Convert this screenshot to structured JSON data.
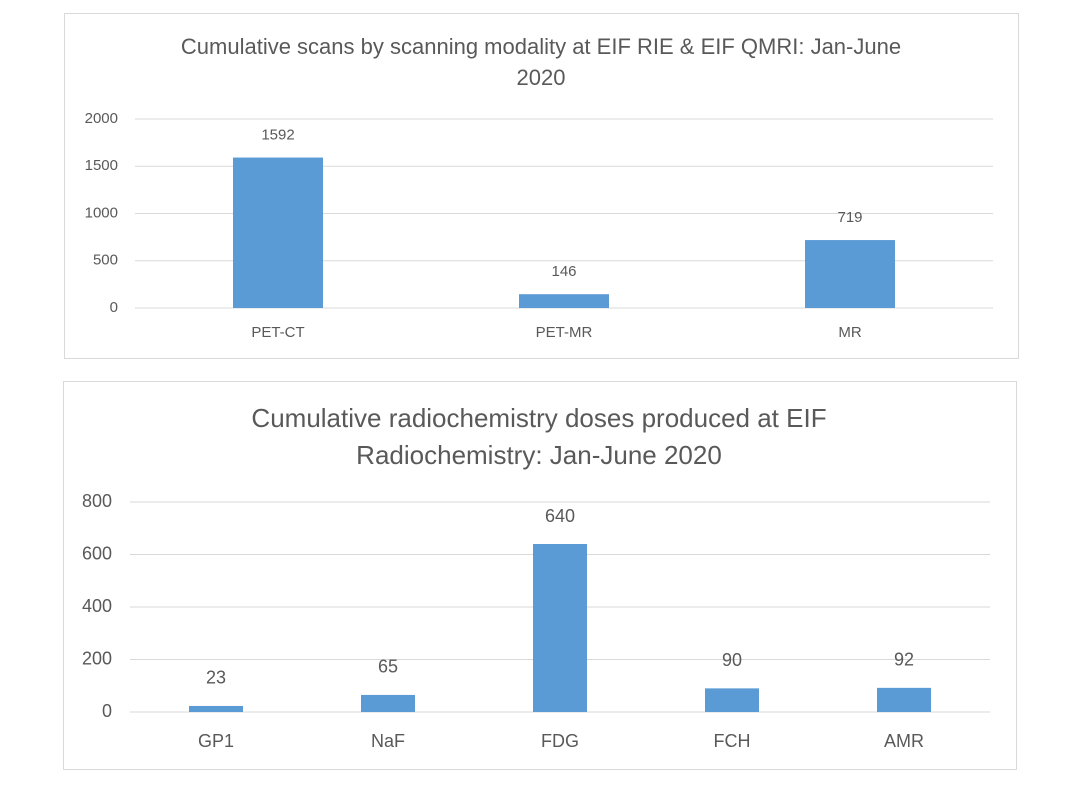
{
  "chart_data": [
    {
      "type": "bar",
      "title": "Cumulative scans by scanning modality at EIF RIE & EIF QMRI: Jan-June 2020",
      "categories": [
        "PET-CT",
        "PET-MR",
        "MR"
      ],
      "values": [
        1592,
        146,
        719
      ],
      "color": "#5b9bd5",
      "ylim": [
        0,
        2000
      ],
      "yticks": [
        0,
        500,
        1000,
        1500,
        2000
      ],
      "grid": true
    },
    {
      "type": "bar",
      "title": "Cumulative radiochemistry doses produced at EIF Radiochemistry: Jan-June 2020",
      "categories": [
        "GP1",
        "NaF",
        "FDG",
        "FCH",
        "AMR"
      ],
      "values": [
        23,
        65,
        640,
        90,
        92
      ],
      "color": "#5b9bd5",
      "ylim": [
        0,
        800
      ],
      "yticks": [
        0,
        200,
        400,
        600,
        800
      ],
      "grid": true
    }
  ]
}
